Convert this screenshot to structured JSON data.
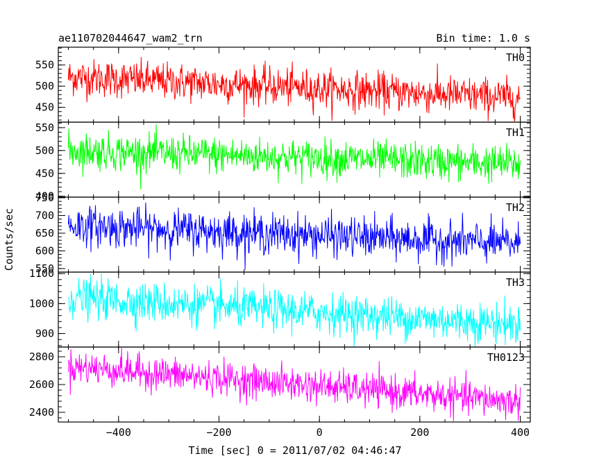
{
  "header": {
    "left_title": "ae110702044647_wam2_trn",
    "right_title": "Bin time: 1.0 s"
  },
  "chart_data": {
    "type": "line",
    "title": "ae110702044647_wam2_trn",
    "subtitle": "Bin time: 1.0 s",
    "xlabel": "Time [sec] 0 = 2011/07/02 04:46:47",
    "ylabel": "Counts/sec",
    "xlim": [
      -520,
      420
    ],
    "x_ticks": [
      -400,
      -200,
      0,
      200,
      400
    ],
    "x_tick_labels": [
      "−400",
      "−200",
      "0",
      "200",
      "400"
    ],
    "x_range": [
      -500,
      400
    ],
    "bin_time_s": 1.0,
    "series": [
      {
        "name": "TH0",
        "color": "#ff0000",
        "ylim": [
          415,
          592
        ],
        "y_ticks": [
          450,
          500,
          550
        ],
        "y_tick_labels": [
          "450",
          "500",
          "550"
        ],
        "trend_start": 522,
        "trend_end": 472,
        "noise": 22
      },
      {
        "name": "TH1",
        "color": "#00ff00",
        "ylim": [
          398,
          562
        ],
        "y_ticks": [
          400,
          450,
          500,
          550
        ],
        "y_tick_labels": [
          "400",
          "450",
          "500",
          "550"
        ],
        "trend_start": 500,
        "trend_end": 470,
        "noise": 20
      },
      {
        "name": "TH2",
        "color": "#0000ff",
        "ylim": [
          540,
          752
        ],
        "y_ticks": [
          550,
          600,
          650,
          700,
          750
        ],
        "y_tick_labels": [
          "550",
          "600",
          "650",
          "700",
          "750"
        ],
        "trend_start": 672,
        "trend_end": 620,
        "noise": 28
      },
      {
        "name": "TH3",
        "color": "#00ffff",
        "ylim": [
          855,
          1105
        ],
        "y_ticks": [
          900,
          1000,
          1100
        ],
        "y_tick_labels": [
          "900",
          "1000",
          "1100"
        ],
        "trend_start": 1020,
        "trend_end": 930,
        "noise": 33
      },
      {
        "name": "TH0123",
        "color": "#ff00ff",
        "ylim": [
          2330,
          2870
        ],
        "y_ticks": [
          2400,
          2600,
          2800
        ],
        "y_tick_labels": [
          "2400",
          "2600",
          "2800"
        ],
        "trend_start": 2730,
        "trend_end": 2475,
        "noise": 60
      }
    ]
  }
}
